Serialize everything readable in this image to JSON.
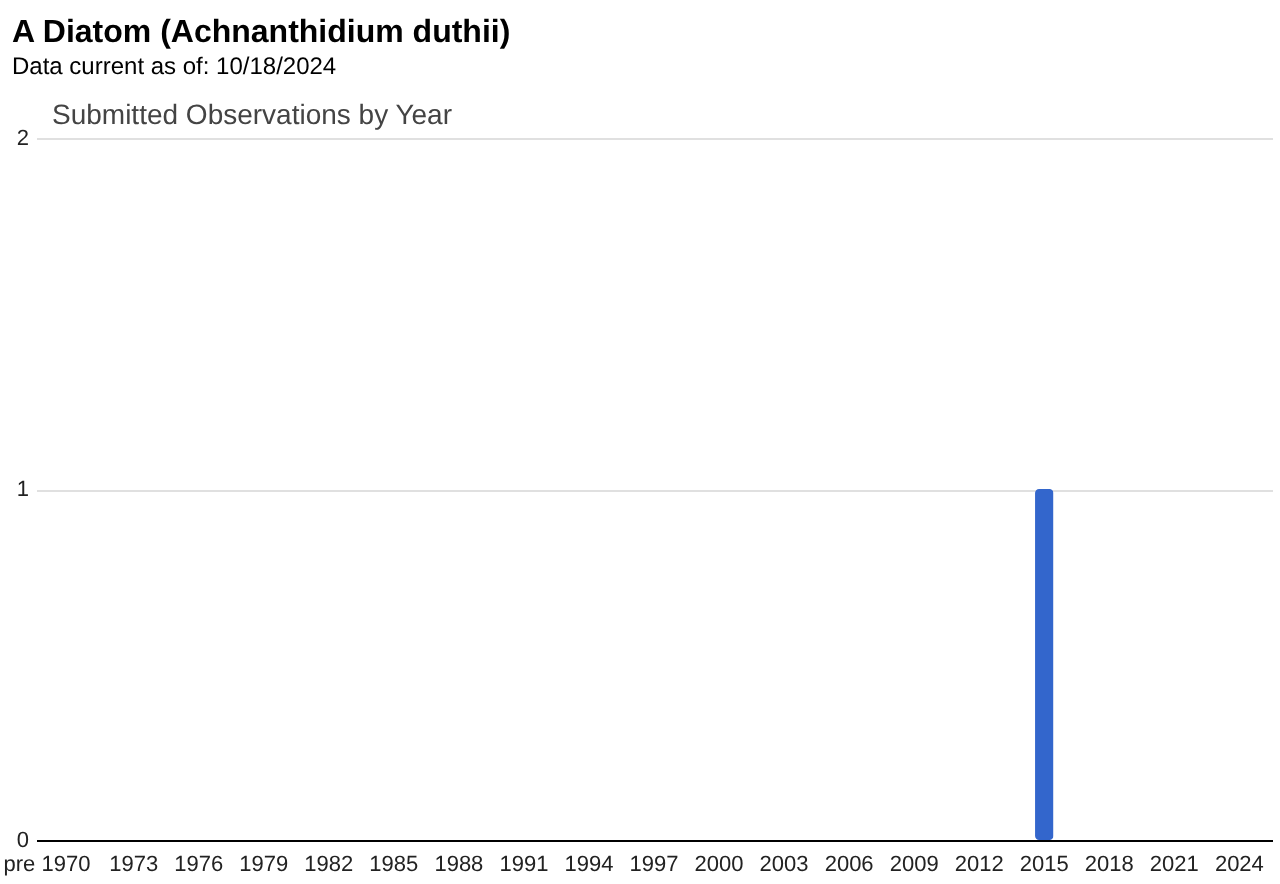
{
  "chart_data": {
    "type": "bar",
    "title": "A Diatom   (Achnanthidium duthii)",
    "subtitle": "Data current as of: 10/18/2024",
    "annotations": [
      "Submitted Observations by Year"
    ],
    "categories": [
      "pre 1970",
      null,
      null,
      null,
      "1973",
      null,
      null,
      "1976",
      null,
      null,
      "1979",
      null,
      null,
      "1982",
      null,
      null,
      "1985",
      null,
      null,
      "1988",
      null,
      null,
      "1991",
      null,
      null,
      "1994",
      null,
      null,
      "1997",
      null,
      null,
      "2000",
      null,
      null,
      "2003",
      null,
      null,
      "2006",
      null,
      null,
      "2009",
      null,
      null,
      "2012",
      null,
      null,
      "2015",
      null,
      null,
      "2018",
      null,
      null,
      "2021",
      null,
      null,
      "2024",
      null
    ],
    "values": [
      0,
      0,
      0,
      0,
      0,
      0,
      0,
      0,
      0,
      0,
      0,
      0,
      0,
      0,
      0,
      0,
      0,
      0,
      0,
      0,
      0,
      0,
      0,
      0,
      0,
      0,
      0,
      0,
      0,
      0,
      0,
      0,
      0,
      0,
      0,
      0,
      0,
      0,
      0,
      0,
      0,
      0,
      0,
      0,
      0,
      0,
      1,
      0,
      0,
      0,
      0,
      0,
      0,
      0,
      0,
      0,
      0
    ],
    "color": "#3366cc",
    "ylim": [
      0,
      2
    ],
    "yticks": [
      0,
      1,
      2
    ],
    "grid": "y"
  }
}
